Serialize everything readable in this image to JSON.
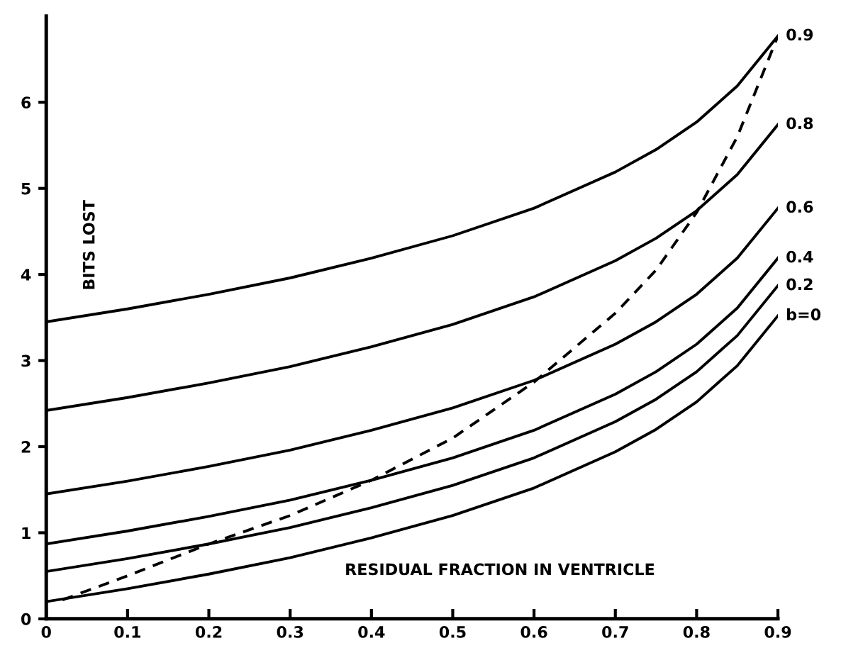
{
  "chart_data": {
    "type": "line",
    "xlabel": "RESIDUAL FRACTION IN VENTRICLE",
    "ylabel": "BITS LOST",
    "x": [
      0,
      0.1,
      0.2,
      0.3,
      0.4,
      0.5,
      0.6,
      0.7,
      0.75,
      0.8,
      0.85,
      0.9
    ],
    "series": [
      {
        "name": "0.9",
        "color": "#000000",
        "values": [
          3.45,
          3.6,
          3.77,
          3.96,
          4.19,
          4.45,
          4.77,
          5.19,
          5.45,
          5.77,
          6.19,
          6.77
        ]
      },
      {
        "name": "0.8",
        "color": "#000000",
        "values": [
          2.42,
          2.57,
          2.74,
          2.93,
          3.16,
          3.42,
          3.74,
          4.16,
          4.42,
          4.74,
          5.16,
          5.74
        ]
      },
      {
        "name": "0.6",
        "color": "#000000",
        "values": [
          1.45,
          1.6,
          1.77,
          1.96,
          2.19,
          2.45,
          2.77,
          3.19,
          3.45,
          3.77,
          4.19,
          4.77
        ]
      },
      {
        "name": "0.4",
        "color": "#000000",
        "values": [
          0.87,
          1.02,
          1.19,
          1.38,
          1.61,
          1.87,
          2.19,
          2.61,
          2.87,
          3.19,
          3.61,
          4.19
        ]
      },
      {
        "name": "0.2",
        "color": "#000000",
        "values": [
          0.55,
          0.7,
          0.87,
          1.06,
          1.29,
          1.55,
          1.87,
          2.29,
          2.55,
          2.87,
          3.29,
          3.87
        ]
      },
      {
        "name": "b=0",
        "color": "#000000",
        "values": [
          0.2,
          0.35,
          0.52,
          0.71,
          0.94,
          1.2,
          1.52,
          1.94,
          2.2,
          2.52,
          2.94,
          3.52
        ]
      },
      {
        "color": "#000000",
        "line_style": "dashed",
        "x": [
          0.02,
          0.1,
          0.2,
          0.3,
          0.4,
          0.5,
          0.6,
          0.7,
          0.75,
          0.8,
          0.85,
          0.9
        ],
        "values": [
          0.22,
          0.5,
          0.87,
          1.2,
          1.61,
          2.1,
          2.75,
          3.55,
          4.05,
          4.72,
          5.6,
          6.77
        ]
      }
    ],
    "xlim": [
      0,
      0.9
    ],
    "ylim": [
      0,
      7
    ],
    "xticks": [
      0,
      0.1,
      0.2,
      0.3,
      0.4,
      0.5,
      0.6,
      0.7,
      0.8,
      0.9
    ],
    "yticks": [
      0,
      1,
      2,
      3,
      4,
      5,
      6
    ],
    "line_style": "solid",
    "marker": "none",
    "grid": false,
    "legend": false
  }
}
